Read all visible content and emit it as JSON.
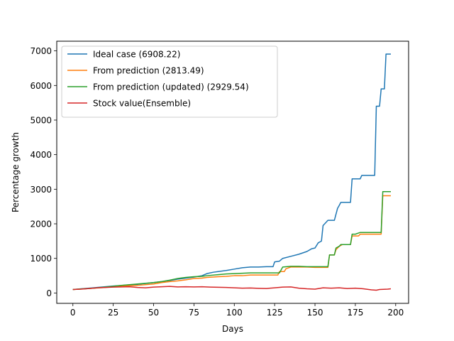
{
  "chart_data": {
    "type": "line",
    "title": "",
    "xlabel": "Days",
    "ylabel": "Percentage growth",
    "xlim": [
      -10,
      208
    ],
    "ylim": [
      -300,
      7280
    ],
    "xticks": [
      0,
      25,
      50,
      75,
      100,
      125,
      150,
      175,
      200
    ],
    "yticks": [
      0,
      1000,
      2000,
      3000,
      4000,
      5000,
      6000,
      7000
    ],
    "grid": false,
    "legend_position": "top-left",
    "series": [
      {
        "name": "Ideal case (6908.22)",
        "color": "#1f77b4",
        "points": [
          [
            0,
            100
          ],
          [
            5,
            120
          ],
          [
            10,
            140
          ],
          [
            15,
            160
          ],
          [
            20,
            180
          ],
          [
            25,
            200
          ],
          [
            30,
            215
          ],
          [
            35,
            235
          ],
          [
            40,
            250
          ],
          [
            45,
            275
          ],
          [
            50,
            300
          ],
          [
            55,
            330
          ],
          [
            60,
            360
          ],
          [
            65,
            400
          ],
          [
            70,
            430
          ],
          [
            75,
            460
          ],
          [
            80,
            500
          ],
          [
            83,
            560
          ],
          [
            87,
            600
          ],
          [
            90,
            620
          ],
          [
            95,
            650
          ],
          [
            100,
            690
          ],
          [
            105,
            730
          ],
          [
            110,
            750
          ],
          [
            115,
            750
          ],
          [
            120,
            760
          ],
          [
            124,
            760
          ],
          [
            125,
            900
          ],
          [
            128,
            920
          ],
          [
            130,
            1000
          ],
          [
            135,
            1060
          ],
          [
            140,
            1120
          ],
          [
            145,
            1200
          ],
          [
            148,
            1280
          ],
          [
            150,
            1300
          ],
          [
            152,
            1450
          ],
          [
            154,
            1500
          ],
          [
            155,
            1950
          ],
          [
            157,
            2050
          ],
          [
            158,
            2100
          ],
          [
            160,
            2100
          ],
          [
            162,
            2100
          ],
          [
            164,
            2450
          ],
          [
            165,
            2530
          ],
          [
            166,
            2620
          ],
          [
            170,
            2620
          ],
          [
            172,
            2620
          ],
          [
            173,
            3300
          ],
          [
            175,
            3300
          ],
          [
            178,
            3300
          ],
          [
            179,
            3400
          ],
          [
            185,
            3400
          ],
          [
            187,
            3400
          ],
          [
            188,
            5400
          ],
          [
            190,
            5400
          ],
          [
            191,
            5900
          ],
          [
            193,
            5900
          ],
          [
            194,
            6908
          ],
          [
            197,
            6908
          ]
        ]
      },
      {
        "name": "From prediction (2813.49)",
        "color": "#ff7f0e",
        "points": [
          [
            0,
            100
          ],
          [
            10,
            130
          ],
          [
            20,
            160
          ],
          [
            30,
            200
          ],
          [
            40,
            220
          ],
          [
            50,
            260
          ],
          [
            55,
            300
          ],
          [
            60,
            330
          ],
          [
            65,
            350
          ],
          [
            70,
            380
          ],
          [
            75,
            420
          ],
          [
            80,
            430
          ],
          [
            83,
            450
          ],
          [
            90,
            470
          ],
          [
            95,
            480
          ],
          [
            100,
            500
          ],
          [
            105,
            500
          ],
          [
            110,
            520
          ],
          [
            115,
            520
          ],
          [
            120,
            520
          ],
          [
            127,
            520
          ],
          [
            128,
            620
          ],
          [
            131,
            620
          ],
          [
            132,
            700
          ],
          [
            135,
            750
          ],
          [
            140,
            750
          ],
          [
            145,
            750
          ],
          [
            150,
            740
          ],
          [
            155,
            740
          ],
          [
            158,
            740
          ],
          [
            159,
            1100
          ],
          [
            162,
            1100
          ],
          [
            163,
            1250
          ],
          [
            165,
            1350
          ],
          [
            167,
            1400
          ],
          [
            170,
            1400
          ],
          [
            172,
            1400
          ],
          [
            173,
            1650
          ],
          [
            175,
            1650
          ],
          [
            177,
            1650
          ],
          [
            178,
            1700
          ],
          [
            185,
            1700
          ],
          [
            191,
            1700
          ],
          [
            192,
            2813
          ],
          [
            197,
            2813
          ]
        ]
      },
      {
        "name": "From prediction (updated) (2929.54)",
        "color": "#2ca02c",
        "points": [
          [
            0,
            100
          ],
          [
            10,
            130
          ],
          [
            20,
            170
          ],
          [
            30,
            220
          ],
          [
            40,
            260
          ],
          [
            50,
            300
          ],
          [
            55,
            330
          ],
          [
            60,
            370
          ],
          [
            65,
            420
          ],
          [
            70,
            450
          ],
          [
            75,
            470
          ],
          [
            80,
            480
          ],
          [
            83,
            500
          ],
          [
            90,
            530
          ],
          [
            95,
            550
          ],
          [
            100,
            560
          ],
          [
            105,
            570
          ],
          [
            110,
            580
          ],
          [
            115,
            580
          ],
          [
            120,
            580
          ],
          [
            125,
            580
          ],
          [
            128,
            580
          ],
          [
            130,
            750
          ],
          [
            135,
            770
          ],
          [
            140,
            770
          ],
          [
            145,
            760
          ],
          [
            150,
            760
          ],
          [
            155,
            760
          ],
          [
            158,
            760
          ],
          [
            159,
            1100
          ],
          [
            162,
            1100
          ],
          [
            163,
            1300
          ],
          [
            165,
            1350
          ],
          [
            166,
            1400
          ],
          [
            170,
            1400
          ],
          [
            172,
            1400
          ],
          [
            173,
            1700
          ],
          [
            175,
            1700
          ],
          [
            178,
            1750
          ],
          [
            185,
            1750
          ],
          [
            191,
            1750
          ],
          [
            192,
            2930
          ],
          [
            197,
            2930
          ]
        ]
      },
      {
        "name": "Stock value(Ensemble)",
        "color": "#d62728",
        "points": [
          [
            0,
            100
          ],
          [
            5,
            110
          ],
          [
            10,
            130
          ],
          [
            15,
            150
          ],
          [
            20,
            160
          ],
          [
            25,
            170
          ],
          [
            30,
            175
          ],
          [
            35,
            180
          ],
          [
            40,
            160
          ],
          [
            45,
            150
          ],
          [
            50,
            170
          ],
          [
            55,
            180
          ],
          [
            60,
            190
          ],
          [
            65,
            175
          ],
          [
            70,
            180
          ],
          [
            75,
            175
          ],
          [
            80,
            180
          ],
          [
            85,
            170
          ],
          [
            90,
            165
          ],
          [
            95,
            160
          ],
          [
            100,
            150
          ],
          [
            105,
            140
          ],
          [
            110,
            145
          ],
          [
            115,
            135
          ],
          [
            120,
            130
          ],
          [
            125,
            150
          ],
          [
            130,
            170
          ],
          [
            135,
            175
          ],
          [
            140,
            140
          ],
          [
            145,
            120
          ],
          [
            150,
            110
          ],
          [
            155,
            150
          ],
          [
            160,
            140
          ],
          [
            165,
            150
          ],
          [
            170,
            130
          ],
          [
            175,
            140
          ],
          [
            180,
            120
          ],
          [
            185,
            90
          ],
          [
            188,
            80
          ],
          [
            190,
            100
          ],
          [
            195,
            110
          ],
          [
            197,
            120
          ]
        ]
      }
    ]
  }
}
